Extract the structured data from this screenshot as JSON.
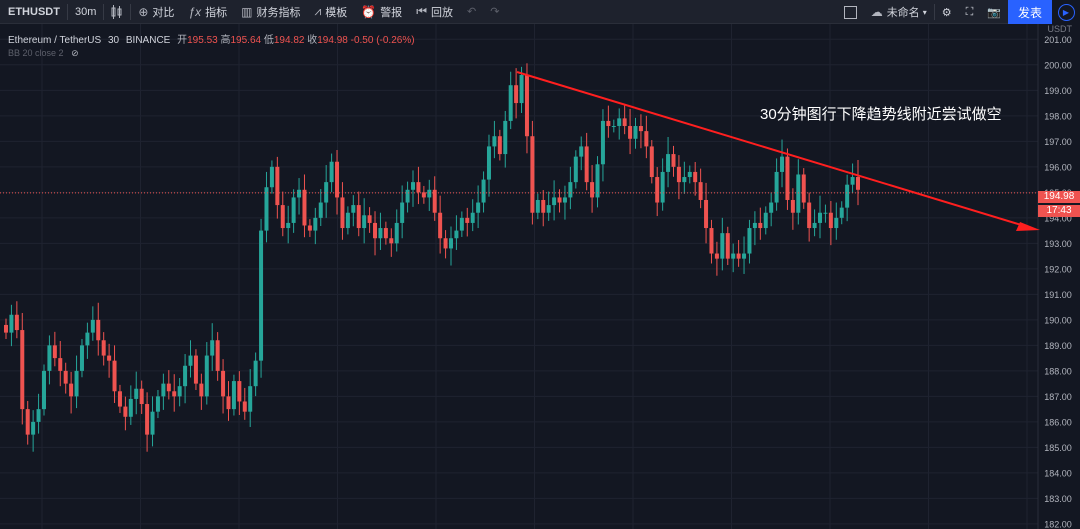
{
  "toolbar": {
    "symbol": "ETHUSDT",
    "interval": "30m",
    "compare_label": "对比",
    "indicators_label": "指标",
    "financials_label": "财务指标",
    "templates_label": "模板",
    "alert_label": "警报",
    "replay_label": "回放",
    "layout_name": "未命名",
    "publish_label": "发表",
    "icons": [
      "candles-icon",
      "plus-circle-icon",
      "fx-icon",
      "bar-chart-icon",
      "templates-icon",
      "alarm-icon",
      "replay-icon",
      "undo-icon",
      "redo-icon",
      "square-icon",
      "cloud-icon",
      "gear-icon",
      "fullscreen-icon",
      "camera-icon",
      "play-icon"
    ]
  },
  "legend": {
    "title": "Ethereum / TetherUS",
    "interval": "30",
    "exchange": "BINANCE",
    "open_label": "开",
    "open": "195.53",
    "high_label": "高",
    "high": "195.64",
    "low_label": "低",
    "low": "194.82",
    "close_label": "收",
    "close": "194.98",
    "change": "-0.50 (-0.26%)",
    "indicator": "BB 20 close 2"
  },
  "price_axis": {
    "unit": "USDT",
    "current_price": "194.98",
    "countdown": "17:43"
  },
  "annotation": "30分钟图行下降趋势线附近尝试做空",
  "colors": {
    "background": "#131722",
    "up": "#26a69a",
    "down": "#ef5350",
    "trendline": "#ff1f1f",
    "accent": "#2962ff"
  },
  "chart_data": {
    "type": "candlestick",
    "ylim": [
      181.8,
      201.6
    ],
    "yticks": [
      182,
      183,
      184,
      185,
      186,
      187,
      188,
      189,
      190,
      191,
      192,
      193,
      194,
      195,
      196,
      197,
      198,
      199,
      200,
      201
    ],
    "current_price": 194.98,
    "closes": [
      189.5,
      190.2,
      189.6,
      186.5,
      185.5,
      186.0,
      186.5,
      188.0,
      189.0,
      188.5,
      188.0,
      187.5,
      187.0,
      188.0,
      189.0,
      189.5,
      190.0,
      189.2,
      188.6,
      188.4,
      187.2,
      186.6,
      186.2,
      186.9,
      187.3,
      186.7,
      185.5,
      186.4,
      187.0,
      187.5,
      187.2,
      187.0,
      187.4,
      188.2,
      188.6,
      187.5,
      187.0,
      188.6,
      189.2,
      188.0,
      187.0,
      186.5,
      187.6,
      186.8,
      186.4,
      187.4,
      188.4,
      193.5,
      195.2,
      196.0,
      194.5,
      193.6,
      193.8,
      194.8,
      195.1,
      193.7,
      193.5,
      194.0,
      194.6,
      195.4,
      196.2,
      194.8,
      193.6,
      194.2,
      194.5,
      193.6,
      194.1,
      193.8,
      193.2,
      193.6,
      193.2,
      193.0,
      193.8,
      194.6,
      195.1,
      195.4,
      195.0,
      194.8,
      195.1,
      194.2,
      193.2,
      192.8,
      193.2,
      193.5,
      194.0,
      193.8,
      194.2,
      194.6,
      195.5,
      196.8,
      197.2,
      196.5,
      197.8,
      199.2,
      198.5,
      199.6,
      197.2,
      194.2,
      194.7,
      194.2,
      194.5,
      194.8,
      194.6,
      194.8,
      195.4,
      196.4,
      196.8,
      195.4,
      194.8,
      196.1,
      197.8,
      197.6,
      197.6,
      197.9,
      197.6,
      197.1,
      197.6,
      197.4,
      196.8,
      195.6,
      194.6,
      195.8,
      196.5,
      196.0,
      195.4,
      195.6,
      195.8,
      195.4,
      194.7,
      193.6,
      192.6,
      192.4,
      193.4,
      192.4,
      192.6,
      192.4,
      192.6,
      193.6,
      193.8,
      193.6,
      194.2,
      194.6,
      195.8,
      196.4,
      194.7,
      194.2,
      195.7,
      194.6,
      193.6,
      193.8,
      194.2,
      194.2,
      193.6,
      194.0,
      194.4,
      195.3,
      195.6,
      195.1
    ]
  }
}
